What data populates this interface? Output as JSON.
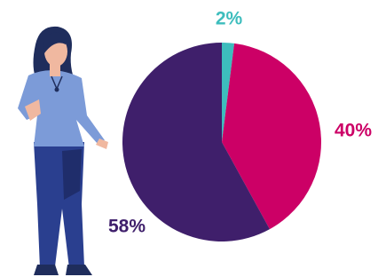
{
  "chart_data": {
    "type": "pie",
    "values": [
      2,
      40,
      58
    ],
    "value_labels": [
      "2%",
      "40%",
      "58%"
    ],
    "colors": [
      "#3dbdbd",
      "#cc0066",
      "#3f1f6b"
    ]
  }
}
